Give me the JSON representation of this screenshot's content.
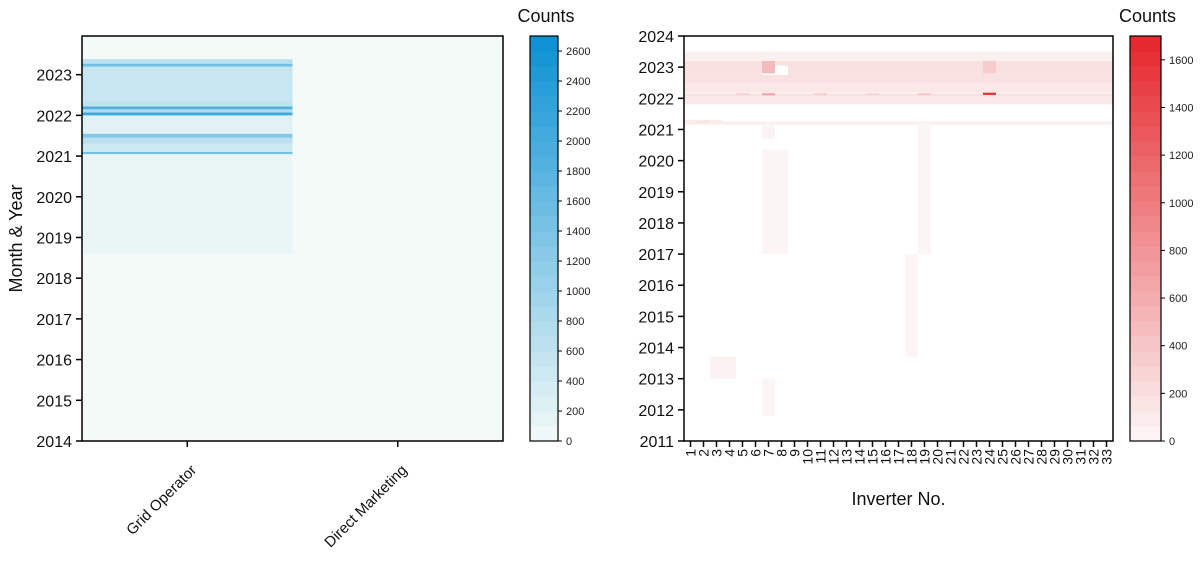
{
  "chart_data": [
    {
      "type": "heatmap",
      "ylabel": "Month & Year",
      "xlabel": "",
      "colorbar_title": "Counts",
      "colorbar_max": 2700,
      "colorbar_ticks": [
        0,
        200,
        400,
        600,
        800,
        1000,
        1200,
        1400,
        1600,
        1800,
        2000,
        2200,
        2400,
        2600
      ],
      "color_low": "#f3faf7",
      "color_high": "#0a90d4",
      "ylim": [
        2014,
        2023.95
      ],
      "yticks": [
        2014,
        2015,
        2016,
        2017,
        2018,
        2019,
        2020,
        2021,
        2022,
        2023
      ],
      "categories": [
        "Grid Operator",
        "Direct Marketing"
      ],
      "background_count": 0,
      "cells": [
        {
          "category": "Grid Operator",
          "from": 2018.6,
          "to": 2021.05,
          "value": 100
        },
        {
          "category": "Grid Operator",
          "from": 2021.05,
          "to": 2021.1,
          "value": 1500
        },
        {
          "category": "Grid Operator",
          "from": 2021.1,
          "to": 2021.3,
          "value": 450
        },
        {
          "category": "Grid Operator",
          "from": 2021.3,
          "to": 2021.45,
          "value": 650
        },
        {
          "category": "Grid Operator",
          "from": 2021.45,
          "to": 2021.55,
          "value": 1300
        },
        {
          "category": "Grid Operator",
          "from": 2021.55,
          "to": 2022.0,
          "value": 200
        },
        {
          "category": "Grid Operator",
          "from": 2022.0,
          "to": 2022.07,
          "value": 2100
        },
        {
          "category": "Grid Operator",
          "from": 2022.07,
          "to": 2022.15,
          "value": 800
        },
        {
          "category": "Grid Operator",
          "from": 2022.15,
          "to": 2022.22,
          "value": 1900
        },
        {
          "category": "Grid Operator",
          "from": 2022.22,
          "to": 2022.35,
          "value": 600
        },
        {
          "category": "Grid Operator",
          "from": 2022.35,
          "to": 2023.2,
          "value": 500
        },
        {
          "category": "Grid Operator",
          "from": 2023.2,
          "to": 2023.27,
          "value": 1500
        },
        {
          "category": "Grid Operator",
          "from": 2023.27,
          "to": 2023.38,
          "value": 650
        }
      ]
    },
    {
      "type": "heatmap",
      "xlabel": "Inverter No.",
      "ylabel": "",
      "colorbar_title": "Counts",
      "colorbar_max": 1700,
      "colorbar_ticks": [
        0,
        200,
        400,
        600,
        800,
        1000,
        1200,
        1400,
        1600
      ],
      "color_low": "#fcf7f7",
      "color_high": "#e5262b",
      "ylim": [
        2011,
        2024
      ],
      "yticks": [
        2011,
        2012,
        2013,
        2014,
        2015,
        2016,
        2017,
        2018,
        2019,
        2020,
        2021,
        2022,
        2023,
        2024
      ],
      "categories": [
        "1",
        "2",
        "3",
        "4",
        "5",
        "6",
        "7",
        "8",
        "9",
        "10",
        "11",
        "12",
        "13",
        "14",
        "15",
        "16",
        "17",
        "18",
        "19",
        "20",
        "21",
        "22",
        "23",
        "24",
        "25",
        "26",
        "27",
        "28",
        "29",
        "30",
        "31",
        "32",
        "33"
      ],
      "cells": [
        {
          "category": "7",
          "from": 2011.8,
          "to": 2013.0,
          "value": 15
        },
        {
          "category": "3",
          "from": 2013.0,
          "to": 2013.7,
          "value": 40
        },
        {
          "category": "4",
          "from": 2013.0,
          "to": 2013.7,
          "value": 40
        },
        {
          "category": "18",
          "from": 2013.7,
          "to": 2017.0,
          "value": 15
        },
        {
          "category": "7",
          "from": 2017.0,
          "to": 2020.35,
          "value": 15
        },
        {
          "category": "8",
          "from": 2017.0,
          "to": 2020.35,
          "value": 15
        },
        {
          "category": "19",
          "from": 2017.0,
          "to": 2021.2,
          "value": 15
        },
        {
          "category": "7",
          "from": 2020.7,
          "to": 2021.2,
          "value": 30
        },
        {
          "category": "1",
          "from": 2021.2,
          "to": 2021.3,
          "value": 100
        },
        {
          "category": "2",
          "from": 2021.2,
          "to": 2021.3,
          "value": 150
        },
        {
          "category": "3",
          "from": 2021.2,
          "to": 2021.3,
          "value": 80
        }
      ],
      "bands": [
        {
          "from": 2021.15,
          "to": 2021.25,
          "value": 70
        },
        {
          "from": 2021.8,
          "to": 2022.08,
          "value": 110
        },
        {
          "from": 2022.08,
          "to": 2022.14,
          "value": 200
        },
        {
          "from": 2022.14,
          "to": 2022.2,
          "value": 80
        },
        {
          "from": 2022.2,
          "to": 2022.5,
          "value": 120
        },
        {
          "from": 2022.5,
          "to": 2022.8,
          "value": 180
        },
        {
          "from": 2022.8,
          "to": 2023.2,
          "value": 180
        },
        {
          "from": 2023.2,
          "to": 2023.5,
          "value": 60
        }
      ],
      "hot_cells": [
        {
          "category": "7",
          "from": 2022.8,
          "to": 2023.2,
          "value": 500
        },
        {
          "category": "7",
          "from": 2022.1,
          "to": 2022.16,
          "value": 700
        },
        {
          "category": "24",
          "from": 2022.8,
          "to": 2023.2,
          "value": 350
        },
        {
          "category": "24",
          "from": 2022.11,
          "to": 2022.18,
          "value": 1650
        },
        {
          "category": "19",
          "from": 2022.1,
          "to": 2022.16,
          "value": 400
        },
        {
          "category": "11",
          "from": 2022.1,
          "to": 2022.16,
          "value": 350
        },
        {
          "category": "5",
          "from": 2022.1,
          "to": 2022.16,
          "value": 300
        },
        {
          "category": "15",
          "from": 2022.1,
          "to": 2022.16,
          "value": 280
        }
      ],
      "gaps": [
        {
          "category": "7",
          "from": 2022.75,
          "to": 2023.05,
          "value": 0
        },
        {
          "category": "8",
          "from": 2022.75,
          "to": 2023.05,
          "value": 0
        }
      ]
    }
  ]
}
